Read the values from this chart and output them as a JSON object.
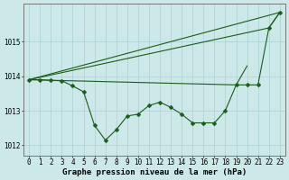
{
  "title": "Graphe pression niveau de la mer (hPa)",
  "hours": [
    0,
    1,
    2,
    3,
    4,
    5,
    6,
    7,
    8,
    9,
    10,
    11,
    12,
    13,
    14,
    15,
    16,
    17,
    18,
    19,
    20,
    21,
    22,
    23
  ],
  "line_upper": {
    "x": [
      0,
      23
    ],
    "y": [
      1013.9,
      1015.85
    ]
  },
  "line_mid_upper": {
    "x": [
      0,
      22,
      23
    ],
    "y": [
      1013.9,
      1015.4,
      1015.85
    ]
  },
  "line_mid_lower": {
    "x": [
      0,
      19,
      20
    ],
    "y": [
      1013.9,
      1013.75,
      1014.3
    ]
  },
  "line_main": {
    "x": [
      0,
      1,
      2,
      3,
      4,
      5,
      6,
      7,
      8,
      9,
      10,
      11,
      12,
      13,
      14,
      15,
      16,
      17,
      18,
      19,
      20,
      21,
      22,
      23
    ],
    "y": [
      1013.9,
      1013.9,
      1013.88,
      1013.87,
      1013.72,
      1013.55,
      1012.58,
      1012.15,
      1012.45,
      1012.85,
      1012.9,
      1013.15,
      1013.25,
      1013.1,
      1012.9,
      1012.65,
      1012.65,
      1012.65,
      1013.0,
      1013.75,
      1013.75,
      1013.75,
      1015.4,
      1015.85
    ]
  },
  "ylim": [
    1011.7,
    1016.1
  ],
  "yticks": [
    1012,
    1013,
    1014,
    1015
  ],
  "xtick_labels": [
    "0",
    "1",
    "2",
    "3",
    "4",
    "5",
    "6",
    "7",
    "8",
    "9",
    "10",
    "11",
    "12",
    "13",
    "14",
    "15",
    "16",
    "17",
    "18",
    "19",
    "20",
    "21",
    "22",
    "23"
  ],
  "bg_color": "#cce8e8",
  "grid_color": "#aad0d0",
  "line_color": "#1a5c1a",
  "font_size_label": 6.5,
  "font_size_tick": 5.5
}
